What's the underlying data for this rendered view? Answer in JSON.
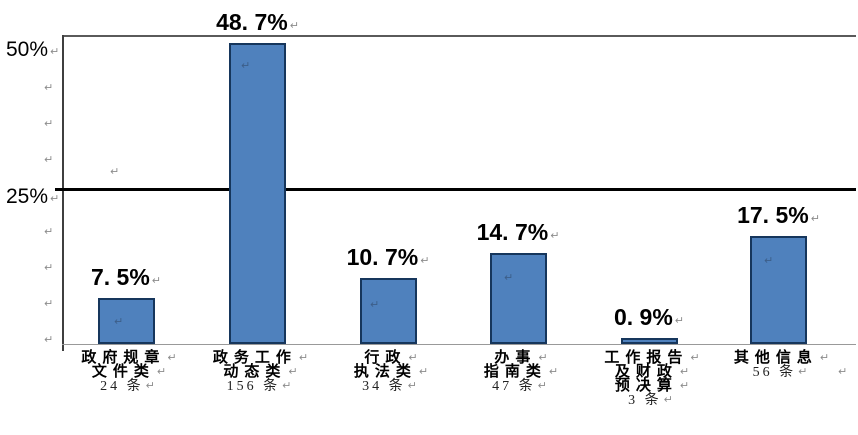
{
  "chart_data": {
    "type": "bar",
    "title": "",
    "xlabel": "",
    "ylabel": "",
    "ylim": [
      0,
      50
    ],
    "ytick_labels": [
      "50%",
      "25%"
    ],
    "gridline_values": [
      25,
      50
    ],
    "legend": "none",
    "bar_fill_color": "#4f81bd",
    "bar_border_color": "#16365c",
    "categories": [
      "政府规章文件类",
      "政务工作动态类",
      "行政执法类",
      "办事指南类",
      "工作报告及财政预决算",
      "其他信息"
    ],
    "values": [
      7.5,
      48.7,
      10.7,
      14.7,
      0.9,
      17.5
    ],
    "counts": [
      24,
      156,
      34,
      47,
      3,
      56
    ],
    "value_labels": [
      "7. 5%",
      "48. 7%",
      "10. 7%",
      "14. 7%",
      "0. 9%",
      "17. 5%"
    ],
    "category_label_lines": [
      [
        "政府规章",
        "文件类"
      ],
      [
        "政务工作",
        "动态类"
      ],
      [
        "行政",
        "执法类"
      ],
      [
        "办事",
        "指南类"
      ],
      [
        "工作报告",
        "及财政",
        "预决算"
      ],
      [
        "其他信息"
      ]
    ],
    "count_labels": [
      "24 条",
      "156 条",
      "34 条",
      "47 条",
      "3 条",
      "56 条"
    ]
  },
  "decorations": {
    "paragraph_mark": "↵"
  }
}
